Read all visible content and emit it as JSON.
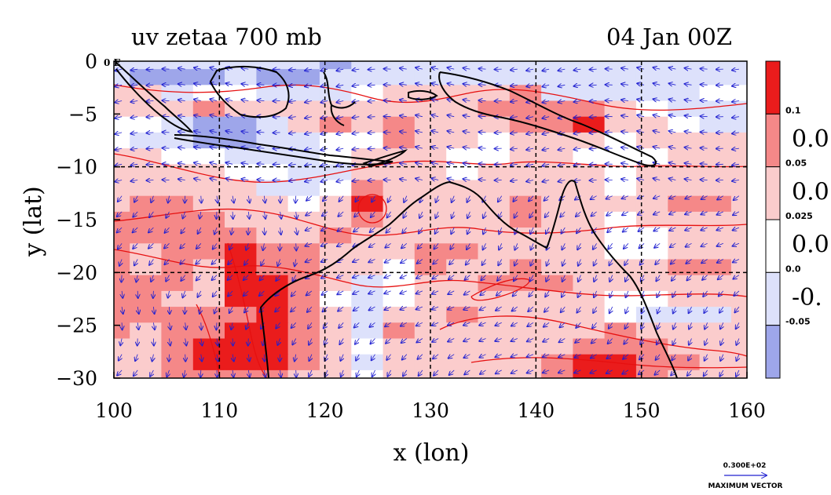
{
  "title_left": "uv zetaa 700 mb",
  "title_right": "04 Jan 00Z",
  "map_corner_label": "0 E",
  "xlabel": "x (lon)",
  "ylabel": "y (lat)",
  "colors": {
    "level_0": "#9ea6ea",
    "level_1": "#dde1fb",
    "level_2": "#ffffff",
    "level_3": "#fbcccc",
    "level_4": "#f58888",
    "level_5": "#ea1c1c",
    "contour": "#e61010",
    "vector": "#2020d0",
    "coast": "#000000"
  },
  "colorbar": {
    "labels": [
      "0.1",
      "0.05",
      "0.025",
      "0.0",
      "-0.05"
    ],
    "side_labels": [
      "0.0",
      "0.0",
      "0.0",
      "-0."
    ]
  },
  "vector_reference": {
    "value_label": "0.300E+02",
    "caption": "MAXIMUM VECTOR"
  },
  "chart_data": {
    "type": "heatmap",
    "title": "uv zetaa 700 mb",
    "subtitle": "04 Jan 00Z",
    "xlabel": "x (lon)",
    "ylabel": "y (lat)",
    "xlim": [
      100,
      160
    ],
    "ylim": [
      -30,
      0
    ],
    "x_ticks": [
      "100",
      "110",
      "120",
      "130",
      "140",
      "150",
      "160"
    ],
    "y_ticks": [
      "0",
      "−5",
      "−10",
      "−15",
      "−20",
      "−25",
      "−30"
    ],
    "y_tick_values": [
      0,
      -5,
      -10,
      -15,
      -20,
      -25,
      -30
    ],
    "x_tick_values": [
      100,
      110,
      120,
      130,
      140,
      150,
      160
    ],
    "grid": true,
    "grid_lines_lon": [
      110,
      120,
      130,
      140,
      150
    ],
    "grid_lines_lat": [
      -10,
      -20
    ],
    "legend": "right colorbar",
    "levels": [
      -0.05,
      0.0,
      0.025,
      0.05,
      0.1
    ],
    "field_rows_lat": [
      0,
      -1.5,
      -3,
      -4.5,
      -6,
      -7.5,
      -9,
      -10.5,
      -12,
      -13.5,
      -15,
      -16.5,
      -18,
      -19.5,
      -21,
      -22.5,
      -24,
      -25.5,
      -27,
      -28.5,
      -30
    ],
    "field_cols_lon": [
      100,
      103,
      106,
      109,
      112,
      115,
      118,
      121,
      124,
      127,
      130,
      133,
      136,
      139,
      142,
      145,
      148,
      151,
      154,
      157,
      160
    ],
    "field_level_index": [
      [
        1,
        1,
        1,
        1,
        1,
        1,
        1,
        0,
        1,
        1,
        1,
        1,
        1,
        1,
        1,
        1,
        1,
        1,
        1,
        1,
        1
      ],
      [
        1,
        0,
        0,
        0,
        1,
        0,
        0,
        1,
        1,
        1,
        1,
        1,
        1,
        1,
        1,
        1,
        1,
        1,
        1,
        1,
        1
      ],
      [
        3,
        3,
        1,
        2,
        2,
        1,
        1,
        1,
        2,
        3,
        3,
        3,
        3,
        4,
        1,
        1,
        1,
        1,
        1,
        2,
        2
      ],
      [
        3,
        3,
        3,
        4,
        3,
        3,
        3,
        3,
        3,
        3,
        3,
        3,
        4,
        4,
        4,
        4,
        3,
        2,
        1,
        1,
        1
      ],
      [
        2,
        2,
        1,
        0,
        0,
        1,
        3,
        4,
        3,
        4,
        3,
        3,
        3,
        4,
        4,
        5,
        3,
        3,
        2,
        1,
        1
      ],
      [
        2,
        1,
        1,
        0,
        0,
        1,
        1,
        2,
        2,
        4,
        3,
        3,
        2,
        3,
        3,
        3,
        2,
        3,
        3,
        3,
        3
      ],
      [
        3,
        3,
        2,
        2,
        1,
        1,
        1,
        2,
        3,
        3,
        3,
        2,
        2,
        3,
        3,
        2,
        2,
        2,
        3,
        3,
        3
      ],
      [
        3,
        3,
        3,
        3,
        2,
        2,
        1,
        1,
        3,
        3,
        3,
        2,
        3,
        3,
        3,
        3,
        2,
        3,
        3,
        3,
        3
      ],
      [
        3,
        3,
        3,
        3,
        3,
        1,
        1,
        2,
        4,
        3,
        3,
        3,
        3,
        3,
        3,
        3,
        2,
        3,
        3,
        3,
        3
      ],
      [
        3,
        4,
        4,
        3,
        3,
        3,
        2,
        3,
        5,
        3,
        3,
        3,
        3,
        4,
        3,
        3,
        3,
        3,
        4,
        4,
        3
      ],
      [
        4,
        4,
        4,
        4,
        3,
        3,
        3,
        3,
        4,
        3,
        3,
        3,
        3,
        4,
        3,
        3,
        2,
        3,
        3,
        3,
        3
      ],
      [
        4,
        4,
        4,
        4,
        4,
        3,
        3,
        4,
        3,
        3,
        3,
        3,
        3,
        3,
        3,
        3,
        2,
        2,
        3,
        3,
        3
      ],
      [
        4,
        3,
        4,
        4,
        5,
        4,
        4,
        3,
        3,
        3,
        4,
        4,
        3,
        3,
        3,
        3,
        2,
        2,
        3,
        3,
        3
      ],
      [
        4,
        3,
        4,
        3,
        5,
        4,
        4,
        3,
        3,
        2,
        4,
        3,
        3,
        4,
        3,
        3,
        3,
        3,
        4,
        4,
        3
      ],
      [
        4,
        4,
        4,
        3,
        5,
        5,
        4,
        3,
        1,
        2,
        3,
        3,
        4,
        4,
        4,
        3,
        3,
        3,
        3,
        3,
        3
      ],
      [
        4,
        4,
        3,
        3,
        5,
        5,
        4,
        2,
        1,
        2,
        3,
        3,
        3,
        3,
        3,
        3,
        2,
        2,
        3,
        3,
        3
      ],
      [
        4,
        4,
        4,
        4,
        4,
        5,
        4,
        3,
        1,
        3,
        3,
        4,
        3,
        3,
        3,
        3,
        2,
        1,
        1,
        1,
        3
      ],
      [
        4,
        3,
        4,
        4,
        5,
        5,
        4,
        3,
        1,
        4,
        3,
        3,
        3,
        3,
        3,
        3,
        4,
        3,
        3,
        3,
        3
      ],
      [
        3,
        3,
        4,
        5,
        5,
        5,
        4,
        3,
        2,
        3,
        3,
        3,
        3,
        3,
        3,
        4,
        4,
        4,
        3,
        3,
        3
      ],
      [
        3,
        3,
        4,
        5,
        5,
        5,
        4,
        3,
        1,
        3,
        3,
        3,
        3,
        3,
        4,
        5,
        5,
        4,
        4,
        3,
        3
      ],
      [
        3,
        3,
        4,
        4,
        4,
        4,
        3,
        3,
        2,
        3,
        3,
        3,
        3,
        3,
        4,
        5,
        5,
        4,
        3,
        3,
        3
      ]
    ]
  }
}
